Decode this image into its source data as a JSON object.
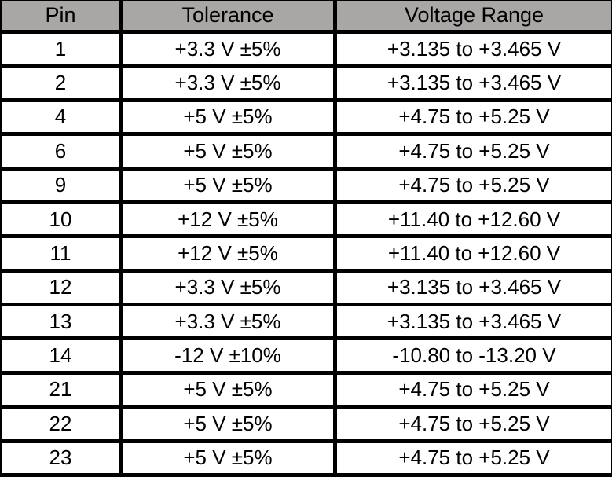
{
  "colors": {
    "header_bg": "#a9a6a5",
    "border": "#000000",
    "row_bg": "#ffffff",
    "text": "#000000"
  },
  "table": {
    "columns": [
      "Pin",
      "Tolerance",
      "Voltage Range"
    ],
    "rows": [
      {
        "pin": "1",
        "tolerance": "+3.3 V ±5%",
        "range": "+3.135 to +3.465 V"
      },
      {
        "pin": "2",
        "tolerance": "+3.3 V ±5%",
        "range": "+3.135 to +3.465 V"
      },
      {
        "pin": "4",
        "tolerance": "+5 V ±5%",
        "range": "+4.75 to +5.25 V"
      },
      {
        "pin": "6",
        "tolerance": "+5 V ±5%",
        "range": "+4.75 to +5.25 V"
      },
      {
        "pin": "9",
        "tolerance": "+5 V ±5%",
        "range": "+4.75 to +5.25 V"
      },
      {
        "pin": "10",
        "tolerance": "+12 V ±5%",
        "range": "+11.40 to +12.60 V"
      },
      {
        "pin": "11",
        "tolerance": "+12 V ±5%",
        "range": "+11.40 to +12.60 V"
      },
      {
        "pin": "12",
        "tolerance": "+3.3 V ±5%",
        "range": "+3.135 to +3.465 V"
      },
      {
        "pin": "13",
        "tolerance": "+3.3 V ±5%",
        "range": "+3.135 to +3.465 V"
      },
      {
        "pin": "14",
        "tolerance": "-12 V ±10%",
        "range": "-10.80 to -13.20 V"
      },
      {
        "pin": "21",
        "tolerance": "+5 V ±5%",
        "range": "+4.75 to +5.25 V"
      },
      {
        "pin": "22",
        "tolerance": "+5 V ±5%",
        "range": "+4.75 to +5.25 V"
      },
      {
        "pin": "23",
        "tolerance": "+5 V ±5%",
        "range": "+4.75 to +5.25 V"
      }
    ]
  }
}
